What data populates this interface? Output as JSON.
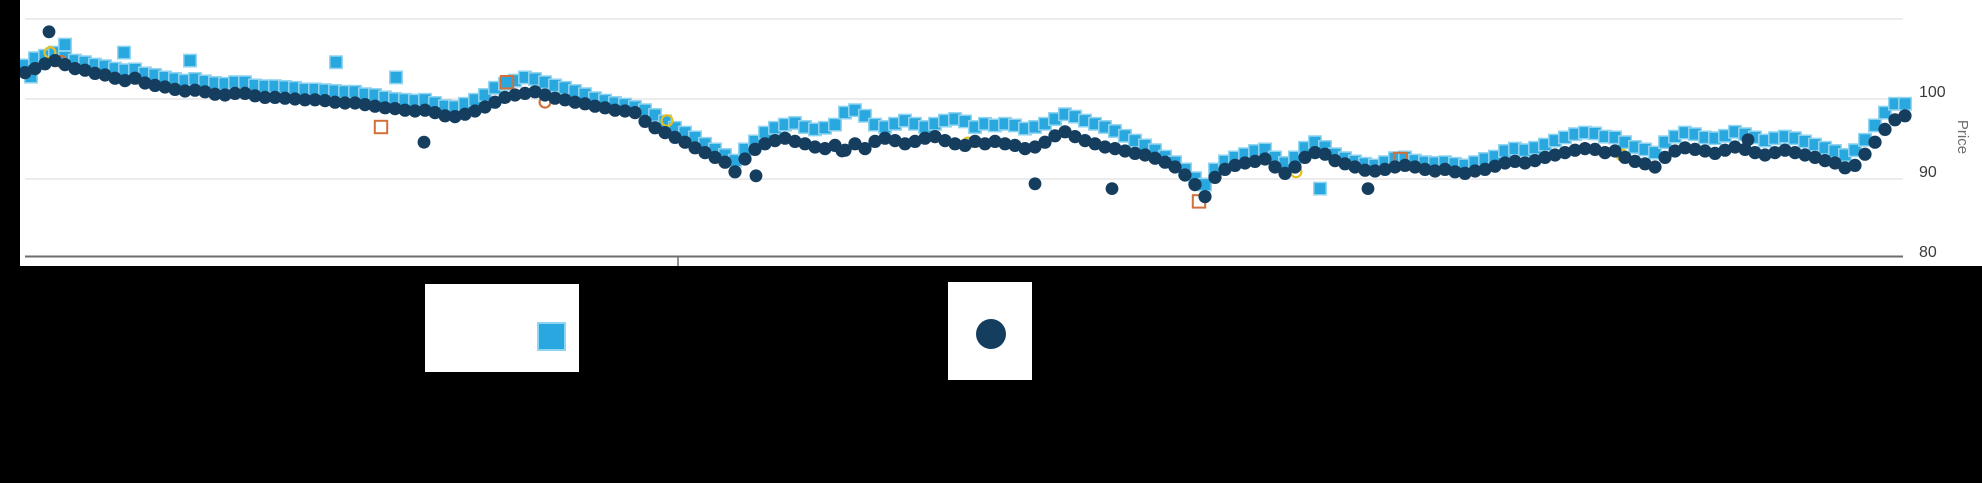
{
  "window": {
    "background": "#000000",
    "chart_background": "#ffffff"
  },
  "axis": {
    "ylabel": "Price",
    "yticks": [
      "100",
      "90",
      "80"
    ]
  },
  "chart_data": {
    "type": "scatter",
    "ylabel": "Price",
    "ylim": [
      80,
      110
    ],
    "ytick_values": [
      100,
      90,
      80
    ],
    "gridline_values": [
      110,
      100,
      90
    ],
    "x_axis": {
      "labels_visible": false,
      "tick_fraction": 0.347
    },
    "legend_position": "bottom",
    "colors": {
      "yellow_flag": "#E5C01E",
      "orange_flag": "#D2703A",
      "grid": "#E0E0E0",
      "axis_line": "#6E6E6E"
    },
    "series": [
      {
        "id": "squares",
        "marker": "square",
        "color": "#29A7DF",
        "edge_color": "#8FD4F0",
        "values": [
          104.2,
          105.1,
          105.4,
          105.8,
          105.2,
          104.8,
          104.6,
          104.3,
          104.1,
          103.8,
          103.6,
          103.7,
          103.2,
          103.0,
          102.7,
          102.5,
          102.3,
          102.5,
          102.2,
          102.0,
          101.9,
          102.1,
          102.1,
          101.7,
          101.6,
          101.6,
          101.5,
          101.4,
          101.2,
          101.2,
          101.1,
          101.0,
          100.9,
          100.9,
          100.6,
          100.5,
          100.2,
          100.0,
          99.9,
          99.8,
          99.9,
          99.5,
          99.1,
          99.0,
          99.4,
          99.9,
          100.5,
          101.4,
          101.9,
          102.3,
          102.7,
          102.5,
          102.1,
          101.7,
          101.4,
          101.0,
          100.6,
          100.1,
          99.8,
          99.5,
          99.3,
          99.0,
          98.6,
          98.0,
          97.2,
          96.4,
          95.8,
          95.2,
          94.4,
          93.7,
          93.0,
          92.3,
          93.7,
          94.7,
          95.8,
          96.4,
          96.8,
          97.0,
          96.5,
          96.2,
          96.4,
          96.8,
          98.3,
          98.6,
          97.9,
          96.8,
          96.5,
          96.9,
          97.3,
          96.9,
          96.5,
          96.9,
          97.3,
          97.5,
          97.2,
          96.5,
          96.9,
          96.7,
          96.9,
          96.7,
          96.3,
          96.5,
          96.9,
          97.5,
          98.1,
          97.8,
          97.3,
          96.9,
          96.5,
          96.0,
          95.4,
          94.8,
          94.2,
          93.6,
          92.8,
          92.1,
          91.2,
          90.1,
          89.3,
          91.2,
          92.2,
          92.7,
          93.1,
          93.5,
          93.7,
          92.7,
          92.0,
          92.7,
          93.9,
          94.6,
          94.0,
          93.1,
          92.6,
          92.2,
          91.9,
          91.7,
          92.1,
          92.6,
          92.7,
          92.3,
          92.1,
          92.0,
          92.1,
          91.9,
          91.7,
          92.1,
          92.5,
          92.8,
          93.5,
          93.8,
          93.6,
          93.9,
          94.3,
          94.8,
          95.2,
          95.6,
          95.8,
          95.7,
          95.3,
          95.2,
          94.6,
          94.0,
          93.7,
          93.3,
          94.6,
          95.3,
          95.8,
          95.6,
          95.2,
          95.1,
          95.4,
          95.9,
          95.6,
          95.2,
          94.8,
          95.1,
          95.3,
          95.1,
          94.7,
          94.3,
          93.9,
          93.5,
          93.0,
          93.6,
          94.9,
          96.7,
          98.3,
          99.4,
          99.4
        ]
      },
      {
        "id": "circles",
        "marker": "circle",
        "color": "#153D5E",
        "values": [
          103.3,
          103.8,
          104.4,
          104.8,
          104.3,
          103.8,
          103.6,
          103.2,
          103.0,
          102.6,
          102.3,
          102.6,
          102.0,
          101.7,
          101.5,
          101.2,
          101.0,
          101.1,
          100.9,
          100.6,
          100.5,
          100.7,
          100.7,
          100.4,
          100.2,
          100.2,
          100.1,
          100.0,
          99.9,
          99.9,
          99.8,
          99.6,
          99.5,
          99.5,
          99.3,
          99.1,
          98.9,
          98.8,
          98.6,
          98.5,
          98.6,
          98.3,
          97.9,
          97.8,
          98.1,
          98.5,
          99.0,
          99.6,
          100.2,
          100.5,
          100.7,
          100.9,
          100.5,
          100.1,
          99.9,
          99.6,
          99.4,
          99.1,
          98.9,
          98.6,
          98.5,
          98.3,
          97.2,
          96.4,
          95.8,
          95.2,
          94.6,
          93.9,
          93.3,
          92.7,
          92.1,
          90.9,
          92.5,
          93.7,
          94.4,
          94.8,
          95.1,
          94.7,
          94.4,
          94.0,
          93.8,
          94.2,
          93.6,
          94.4,
          93.8,
          94.7,
          95.1,
          94.8,
          94.4,
          94.7,
          95.1,
          95.3,
          94.8,
          94.4,
          94.2,
          94.7,
          94.4,
          94.7,
          94.4,
          94.2,
          93.8,
          94.0,
          94.6,
          95.4,
          95.9,
          95.3,
          94.8,
          94.4,
          94.0,
          93.8,
          93.5,
          93.2,
          93.0,
          92.6,
          92.1,
          91.5,
          90.5,
          89.3,
          87.8,
          90.2,
          91.2,
          91.7,
          92.0,
          92.2,
          92.5,
          91.5,
          90.7,
          91.5,
          92.7,
          93.3,
          93.1,
          92.3,
          91.9,
          91.5,
          91.1,
          91.0,
          91.2,
          91.5,
          91.7,
          91.5,
          91.2,
          91.0,
          91.2,
          90.9,
          90.7,
          91.0,
          91.2,
          91.6,
          92.0,
          92.2,
          92.0,
          92.3,
          92.7,
          93.0,
          93.3,
          93.6,
          93.8,
          93.7,
          93.3,
          93.5,
          92.7,
          92.2,
          91.9,
          91.5,
          92.7,
          93.5,
          93.9,
          93.7,
          93.5,
          93.2,
          93.6,
          94.0,
          93.7,
          93.3,
          93.0,
          93.3,
          93.6,
          93.3,
          93.0,
          92.7,
          92.3,
          92.0,
          91.4,
          91.7,
          93.1,
          94.6,
          96.2,
          97.4,
          97.9
        ]
      }
    ],
    "flagged_points": {
      "extra_squares": [
        {
          "i": 0.6,
          "price": 102.8
        },
        {
          "i": 4.0,
          "price": 106.8
        },
        {
          "i": 9.9,
          "price": 105.8
        },
        {
          "i": 16.5,
          "price": 104.8
        },
        {
          "i": 31.1,
          "price": 104.6
        },
        {
          "i": 37.1,
          "price": 102.7
        },
        {
          "i": 129.5,
          "price": 88.8
        }
      ],
      "extra_circles": [
        {
          "i": 2.4,
          "price": 108.4
        },
        {
          "i": 39.9,
          "price": 94.6
        },
        {
          "i": 73.1,
          "price": 90.4
        },
        {
          "i": 81.7,
          "price": 93.5
        },
        {
          "i": 101.0,
          "price": 89.4
        },
        {
          "i": 108.7,
          "price": 88.8
        },
        {
          "i": 134.3,
          "price": 88.8
        },
        {
          "i": 172.3,
          "price": 94.9
        }
      ],
      "yellow_open_circles": [
        {
          "i": 2.5,
          "price": 105.8
        },
        {
          "i": 64.2,
          "price": 97.3
        },
        {
          "i": 94.3,
          "price": 94.5
        },
        {
          "i": 127.1,
          "price": 90.9
        },
        {
          "i": 159.7,
          "price": 93.0
        }
      ],
      "orange_open_circles": [
        {
          "i": 3.6,
          "price": 104.7
        },
        {
          "i": 52.0,
          "price": 99.6
        }
      ],
      "orange_open_squares": [
        {
          "i": 35.6,
          "price": 96.5
        },
        {
          "i": 117.4,
          "price": 87.2
        },
        {
          "i": 137.5,
          "price": 92.5
        }
      ],
      "orange_bordered_blue_squares": [
        {
          "i": 48.2,
          "price": 102.1
        }
      ]
    }
  },
  "legend": {
    "entries": [
      {
        "id": "squares",
        "symbol": "square",
        "color": "#29A7DF",
        "edge_color": "#8FD4F0"
      },
      {
        "id": "circles",
        "symbol": "circle",
        "color": "#153D5E"
      }
    ]
  }
}
